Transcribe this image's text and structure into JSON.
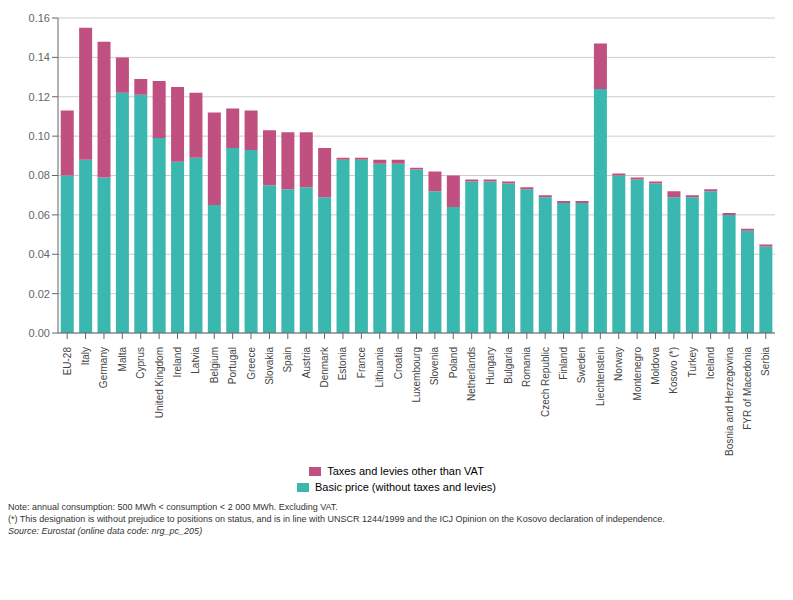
{
  "chart_data": {
    "type": "bar",
    "stacked": true,
    "grid": true,
    "legend": "bottom",
    "categories": [
      "EU-28",
      "Italy",
      "Germany",
      "Malta",
      "Cyprus",
      "United Kingdom",
      "Ireland",
      "Latvia",
      "Belgium",
      "Portugal",
      "Greece",
      "Slovakia",
      "Spain",
      "Austria",
      "Denmark",
      "Estonia",
      "France",
      "Lithuania",
      "Croatia",
      "Luxembourg",
      "Slovenia",
      "Poland",
      "Netherlands",
      "Hungary",
      "Bulgaria",
      "Romania",
      "Czech Republic",
      "Finland",
      "Sweden",
      "Liechtenstein",
      "Norway",
      "Montenegro",
      "Moldova",
      "Kosovo (*)",
      "Turkey",
      "Iceland",
      "Bosnia and Herzegovina",
      "FYR of Macedonia",
      "Serbia"
    ],
    "series": [
      {
        "name": "Basic price (without taxes and levies)",
        "color": "#3ab8b0",
        "values": [
          0.08,
          0.088,
          0.079,
          0.122,
          0.121,
          0.099,
          0.087,
          0.089,
          0.065,
          0.094,
          0.093,
          0.075,
          0.073,
          0.074,
          0.069,
          0.088,
          0.088,
          0.086,
          0.086,
          0.083,
          0.072,
          0.064,
          0.077,
          0.077,
          0.076,
          0.073,
          0.069,
          0.066,
          0.066,
          0.124,
          0.08,
          0.078,
          0.076,
          0.069,
          0.069,
          0.072,
          0.06,
          0.052,
          0.044
        ]
      },
      {
        "name": "Taxes and levies other than VAT",
        "color": "#c05080",
        "values": [
          0.033,
          0.067,
          0.069,
          0.018,
          0.008,
          0.029,
          0.038,
          0.033,
          0.047,
          0.02,
          0.02,
          0.028,
          0.029,
          0.028,
          0.025,
          0.001,
          0.001,
          0.002,
          0.002,
          0.001,
          0.01,
          0.016,
          0.001,
          0.001,
          0.001,
          0.001,
          0.001,
          0.001,
          0.001,
          0.023,
          0.001,
          0.001,
          0.001,
          0.003,
          0.001,
          0.001,
          0.001,
          0.001,
          0.001
        ]
      }
    ],
    "ylim": [
      0.0,
      0.16
    ],
    "yticks": [
      {
        "value": 0.0,
        "label": "0.00"
      },
      0.02,
      0.04,
      0.06,
      0.08,
      {
        "value": 0.1,
        "label": "0.10"
      },
      0.12,
      0.14,
      0.16
    ],
    "annotations": [
      "Note: annual consumption: 500 MWh < consumption < 2 000 MWh. Excluding VAT.",
      "(*) This designation is without prejudice to positions on status, and is in line with UNSCR 1244/1999 and the ICJ Opinion on the Kosovo declaration of independence.",
      "Source: Eurostat (online data code: nrg_pc_205)"
    ]
  }
}
